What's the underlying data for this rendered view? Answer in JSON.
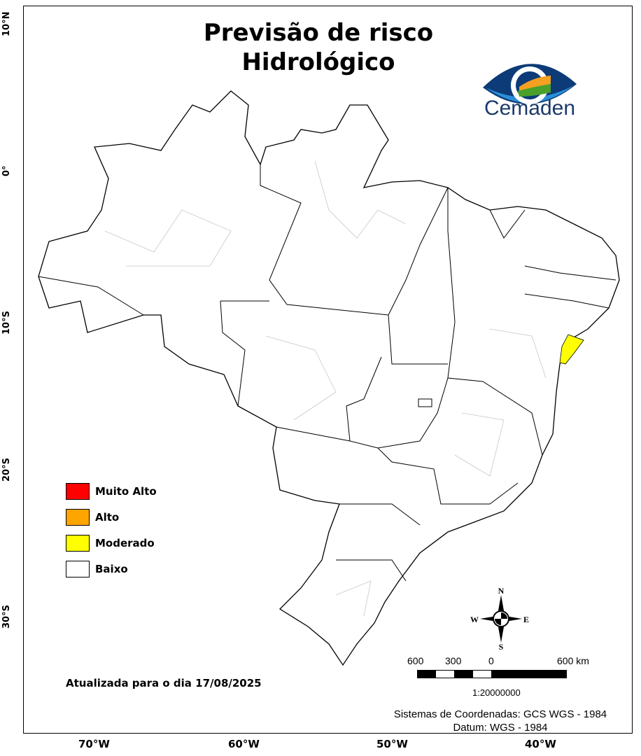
{
  "title_line1": "Previsão de risco",
  "title_line2": "Hidrológico",
  "logo": {
    "text": "Cemaden",
    "colors": [
      "#0d3b78",
      "#2a8fd8",
      "#f4a020",
      "#4aa02a"
    ]
  },
  "latitude_labels": [
    "10°N",
    "0°",
    "10°S",
    "20°S",
    "30°S"
  ],
  "longitude_labels": [
    "70°W",
    "60°W",
    "50°W",
    "40°W"
  ],
  "legend": [
    {
      "label": "Muito Alto",
      "color": "#ff0000"
    },
    {
      "label": "Alto",
      "color": "#ffa500"
    },
    {
      "label": "Moderado",
      "color": "#ffff00"
    },
    {
      "label": "Baixo",
      "color": "#ffffff"
    }
  ],
  "highlighted_region": {
    "risk": "Moderado",
    "color": "#ffff00"
  },
  "updated": "Atualizada para o dia 17/08/2025",
  "compass": {
    "n": "N",
    "s": "S",
    "e": "E",
    "w": "W"
  },
  "scale": {
    "labels": [
      "600",
      "300",
      "0",
      "600 km"
    ],
    "ratio": "1:20000000"
  },
  "coord_system": "Sistemas de Coordenadas: GCS WGS - 1984",
  "datum": "Datum: WGS - 1984"
}
